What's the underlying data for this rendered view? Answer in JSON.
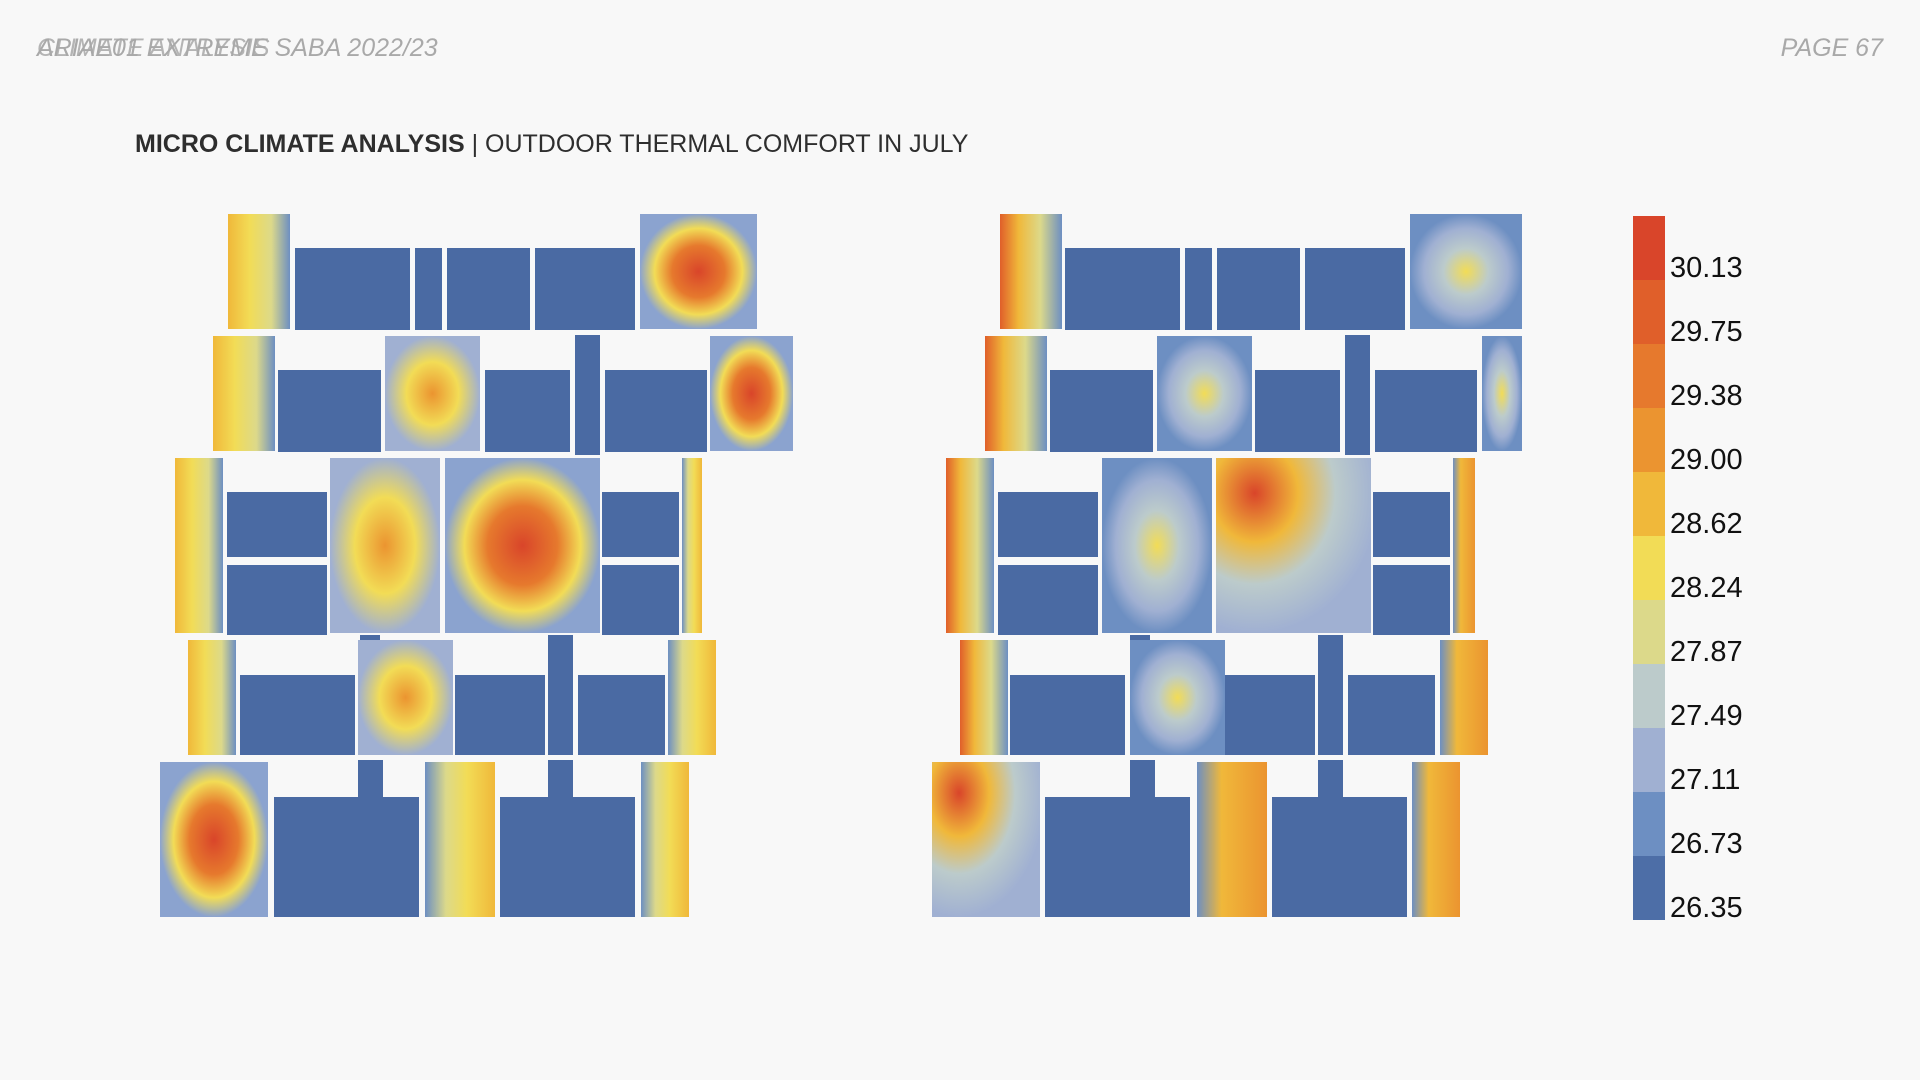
{
  "header": {
    "left_label_a": "ARIAE01 EXTREME SABA 2022/23",
    "left_label_b": "CLIMATE ANALYSIS",
    "page_label": "PAGE 67"
  },
  "title": {
    "bold": "MICRO CLIMATE ANALYSIS",
    "separator": " | ",
    "regular": "OUTDOOR THERMAL COMFORT IN JULY"
  },
  "legend": {
    "values": [
      "30.13",
      "29.75",
      "29.38",
      "29.00",
      "28.62",
      "28.24",
      "27.87",
      "27.49",
      "27.11",
      "26.73",
      "26.35"
    ],
    "colors": [
      "#d9452a",
      "#e05f2a",
      "#e6792d",
      "#eb9430",
      "#f0b83a",
      "#f2dc56",
      "#dcd98a",
      "#bccbcb",
      "#a0b0d2",
      "#6d8fc2",
      "#4d6ea7"
    ]
  },
  "colors": {
    "building": "#4a6aa3",
    "background": "#f8f8f8"
  }
}
